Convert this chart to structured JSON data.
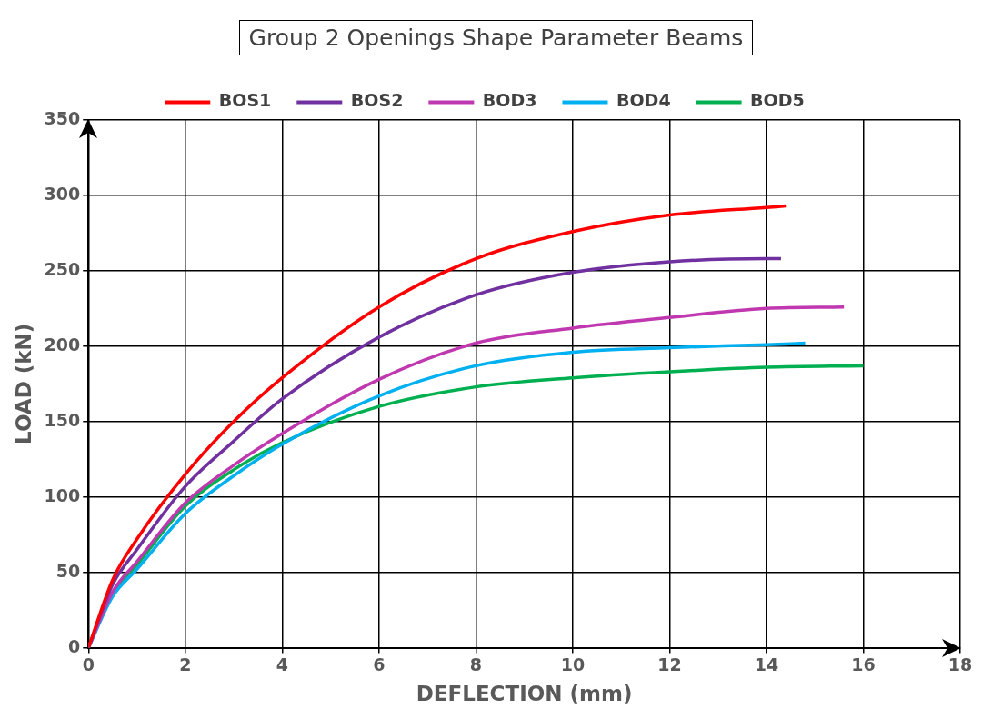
{
  "chart_data": {
    "type": "line",
    "title": "Group 2 Openings Shape Parameter Beams",
    "xlabel": "DEFLECTION (mm)",
    "ylabel": "LOAD (kN)",
    "xlim": [
      0,
      18
    ],
    "xticks": [
      0,
      2,
      4,
      6,
      8,
      10,
      12,
      14,
      16,
      18
    ],
    "ylim": [
      0,
      350
    ],
    "yticks": [
      0,
      50,
      100,
      150,
      200,
      250,
      300,
      350
    ],
    "grid": true,
    "legend": "top",
    "marker": "none",
    "line_style": "solid",
    "series": [
      {
        "name": "BOS1",
        "color": "#ff0000",
        "x": [
          0,
          0.5,
          1,
          2,
          3,
          4,
          6,
          8,
          10,
          12,
          14,
          14.4
        ],
        "values": [
          0,
          45,
          72,
          115,
          150,
          179,
          226,
          258,
          276,
          287,
          292,
          293
        ]
      },
      {
        "name": "BOS2",
        "color": "#7030a0",
        "x": [
          0,
          0.5,
          1,
          2,
          3,
          4,
          6,
          8,
          10,
          12,
          14,
          14.3
        ],
        "values": [
          0,
          42,
          65,
          107,
          137,
          165,
          206,
          234,
          249,
          256,
          258,
          258
        ]
      },
      {
        "name": "BOD3",
        "color": "#c038b0",
        "x": [
          0,
          0.5,
          1,
          2,
          3,
          4,
          6,
          8,
          10,
          12,
          14,
          15.6
        ],
        "values": [
          0,
          37,
          57,
          96,
          121,
          142,
          178,
          202,
          212,
          219,
          225,
          226
        ]
      },
      {
        "name": "BOD4",
        "color": "#00b0f0",
        "x": [
          0,
          0.5,
          1,
          2,
          3,
          4,
          6,
          8,
          10,
          12,
          14,
          14.8
        ],
        "values": [
          0,
          34,
          52,
          89,
          114,
          135,
          167,
          187,
          196,
          199,
          201,
          202
        ]
      },
      {
        "name": "BOD5",
        "color": "#00b050",
        "x": [
          0,
          0.5,
          1,
          2,
          3,
          4,
          6,
          8,
          10,
          12,
          14,
          16
        ],
        "values": [
          0,
          36,
          55,
          94,
          118,
          136,
          160,
          173,
          179,
          183,
          186,
          187
        ]
      }
    ]
  }
}
